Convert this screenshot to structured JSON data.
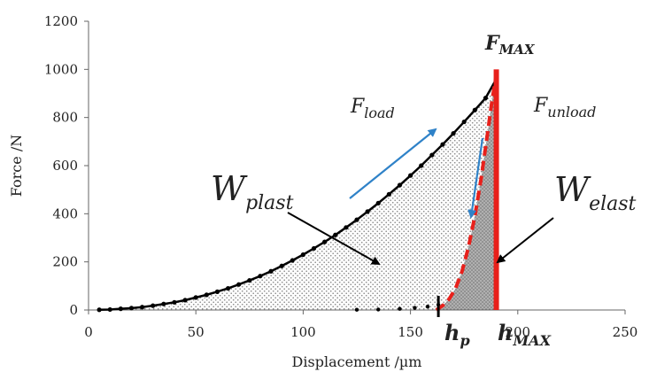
{
  "chart_data": {
    "type": "line",
    "xlabel": "Displacement /µm",
    "ylabel": "Force /N",
    "xlim": [
      0,
      250
    ],
    "ylim": [
      0,
      1200
    ],
    "x_ticks": [
      "0",
      "50",
      "100",
      "150",
      "200",
      "250"
    ],
    "y_ticks": [
      "0",
      "200",
      "400",
      "600",
      "800",
      "1000",
      "1200"
    ],
    "grid": false,
    "series": [
      {
        "name": "F_load",
        "style": "dotted-markers",
        "color": "#000000",
        "x": [
          5,
          10,
          15,
          20,
          25,
          30,
          35,
          40,
          45,
          50,
          55,
          60,
          65,
          70,
          75,
          80,
          85,
          90,
          95,
          100,
          105,
          110,
          115,
          120,
          125,
          130,
          135,
          140,
          145,
          150,
          155,
          160,
          165,
          170,
          175,
          180,
          185,
          190
        ],
        "y": [
          1,
          2,
          5,
          8,
          12,
          18,
          25,
          32,
          41,
          52,
          63,
          76,
          90,
          106,
          123,
          141,
          161,
          183,
          206,
          230,
          256,
          283,
          312,
          343,
          375,
          409,
          444,
          481,
          519,
          559,
          600,
          644,
          688,
          734,
          782,
          831,
          881,
          960
        ]
      },
      {
        "name": "F_unload",
        "style": "dashed",
        "color": "#e8201b",
        "x": [
          162,
          165,
          168,
          171,
          174,
          177,
          180,
          183,
          186,
          188,
          190
        ],
        "y": [
          0,
          18,
          45,
          90,
          160,
          260,
          390,
          550,
          740,
          870,
          980
        ]
      },
      {
        "name": "low-load points",
        "style": "sparse-markers",
        "color": "#000000",
        "x": [
          125,
          135,
          145,
          152,
          158,
          163
        ],
        "y": [
          1,
          2,
          5,
          9,
          14,
          22
        ]
      }
    ],
    "vertical_lines": [
      {
        "label_main": "F",
        "label_sub": "MAX",
        "x": 190,
        "y_top": 1000,
        "color": "#e8201b"
      }
    ],
    "annotations": {
      "f_load": {
        "main": "F",
        "sub": "load"
      },
      "f_unload": {
        "main": "F",
        "sub": "unload"
      },
      "w_plast": {
        "main": "W",
        "sub": "plast"
      },
      "w_elast": {
        "main": "W",
        "sub": "elast"
      },
      "h_p": {
        "main": "h",
        "sub": "p",
        "x": 163
      },
      "h_max": {
        "main": "h",
        "sub": "MAX",
        "x": 190
      }
    },
    "arrow_colors": {
      "direction": "#2f82c8",
      "pointer": "#000000"
    }
  }
}
